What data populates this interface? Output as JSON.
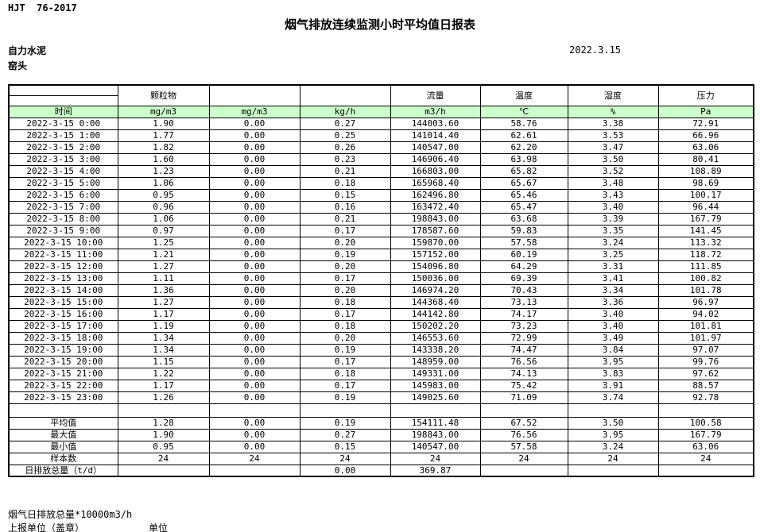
{
  "header": {
    "standard": "HJT  76-2017",
    "title": "烟气排放连续监测小时平均值日报表",
    "company": "自力水泥",
    "station": "窑头",
    "date": "2022.3.15"
  },
  "table": {
    "group_headers": [
      "",
      "颗粒物",
      "",
      "",
      "流量",
      "温度",
      "湿度",
      "压力"
    ],
    "unit_row": [
      "时间",
      "mg/m3",
      "mg/m3",
      "kg/h",
      "m3/h",
      "℃",
      "%",
      "Pa"
    ],
    "rows": [
      [
        "2022-3-15 0:00",
        "1.90",
        "0.00",
        "0.27",
        "144003.60",
        "58.76",
        "3.38",
        "72.91"
      ],
      [
        "2022-3-15 1:00",
        "1.77",
        "0.00",
        "0.25",
        "141014.40",
        "62.61",
        "3.53",
        "66.96"
      ],
      [
        "2022-3-15 2:00",
        "1.82",
        "0.00",
        "0.26",
        "140547.00",
        "62.20",
        "3.47",
        "63.06"
      ],
      [
        "2022-3-15 3:00",
        "1.60",
        "0.00",
        "0.23",
        "146906.40",
        "63.98",
        "3.50",
        "80.41"
      ],
      [
        "2022-3-15 4:00",
        "1.23",
        "0.00",
        "0.21",
        "166803.00",
        "65.82",
        "3.52",
        "108.89"
      ],
      [
        "2022-3-15 5:00",
        "1.06",
        "0.00",
        "0.18",
        "165968.40",
        "65.67",
        "3.48",
        "98.69"
      ],
      [
        "2022-3-15 6:00",
        "0.95",
        "0.00",
        "0.15",
        "162496.80",
        "65.46",
        "3.43",
        "100.17"
      ],
      [
        "2022-3-15 7:00",
        "0.96",
        "0.00",
        "0.16",
        "163472.40",
        "65.47",
        "3.40",
        "96.44"
      ],
      [
        "2022-3-15 8:00",
        "1.06",
        "0.00",
        "0.21",
        "198843.00",
        "63.68",
        "3.39",
        "167.79"
      ],
      [
        "2022-3-15 9:00",
        "0.97",
        "0.00",
        "0.17",
        "178587.60",
        "59.83",
        "3.35",
        "141.45"
      ],
      [
        "2022-3-15 10:00",
        "1.25",
        "0.00",
        "0.20",
        "159870.00",
        "57.58",
        "3.24",
        "113.32"
      ],
      [
        "2022-3-15 11:00",
        "1.21",
        "0.00",
        "0.19",
        "157152.00",
        "60.19",
        "3.25",
        "118.72"
      ],
      [
        "2022-3-15 12:00",
        "1.27",
        "0.00",
        "0.20",
        "154096.80",
        "64.29",
        "3.31",
        "111.85"
      ],
      [
        "2022-3-15 13:00",
        "1.11",
        "0.00",
        "0.17",
        "150036.00",
        "69.39",
        "3.41",
        "100.82"
      ],
      [
        "2022-3-15 14:00",
        "1.36",
        "0.00",
        "0.20",
        "146974.20",
        "70.43",
        "3.34",
        "101.78"
      ],
      [
        "2022-3-15 15:00",
        "1.27",
        "0.00",
        "0.18",
        "144368.40",
        "73.13",
        "3.36",
        "96.97"
      ],
      [
        "2022-3-15 16:00",
        "1.17",
        "0.00",
        "0.17",
        "144142.80",
        "74.17",
        "3.40",
        "94.02"
      ],
      [
        "2022-3-15 17:00",
        "1.19",
        "0.00",
        "0.18",
        "150202.20",
        "73.23",
        "3.40",
        "101.81"
      ],
      [
        "2022-3-15 18:00",
        "1.34",
        "0.00",
        "0.20",
        "146553.60",
        "72.99",
        "3.49",
        "101.97"
      ],
      [
        "2022-3-15 19:00",
        "1.34",
        "0.00",
        "0.19",
        "143338.20",
        "74.47",
        "3.84",
        "97.07"
      ],
      [
        "2022-3-15 20:00",
        "1.15",
        "0.00",
        "0.17",
        "148959.00",
        "76.56",
        "3.95",
        "99.76"
      ],
      [
        "2022-3-15 21:00",
        "1.22",
        "0.00",
        "0.18",
        "149331.00",
        "74.13",
        "3.83",
        "97.62"
      ],
      [
        "2022-3-15 22:00",
        "1.17",
        "0.00",
        "0.17",
        "145983.00",
        "75.42",
        "3.91",
        "88.57"
      ],
      [
        "2022-3-15 23:00",
        "1.26",
        "0.00",
        "0.19",
        "149025.60",
        "71.09",
        "3.74",
        "92.78"
      ]
    ],
    "summary": [
      {
        "key": "average",
        "label": "平均值",
        "values": [
          "1.28",
          "0.00",
          "0.19",
          "154111.48",
          "67.52",
          "3.50",
          "100.58"
        ]
      },
      {
        "key": "max",
        "label": "最大值",
        "values": [
          "1.90",
          "0.00",
          "0.27",
          "198843.00",
          "76.56",
          "3.95",
          "167.79"
        ]
      },
      {
        "key": "min",
        "label": "最小值",
        "values": [
          "0.95",
          "0.00",
          "0.15",
          "140547.00",
          "57.58",
          "3.24",
          "63.06"
        ]
      },
      {
        "key": "sample-count",
        "label": "样本数",
        "values": [
          "24",
          "24",
          "24",
          "24",
          "24",
          "24",
          "24"
        ]
      },
      {
        "key": "daily-total",
        "label": "日排放总量（t/d）",
        "values": [
          "",
          "",
          "0.00",
          "369.87",
          "",
          "",
          ""
        ]
      }
    ]
  },
  "footer": {
    "note": "烟气日排放总量*10000m3/h",
    "report_unit_label": "上报单位（盖章）",
    "unit_label": "单位"
  },
  "colors": {
    "unit_row_bg": "#ccffcc",
    "border": "#000000"
  }
}
